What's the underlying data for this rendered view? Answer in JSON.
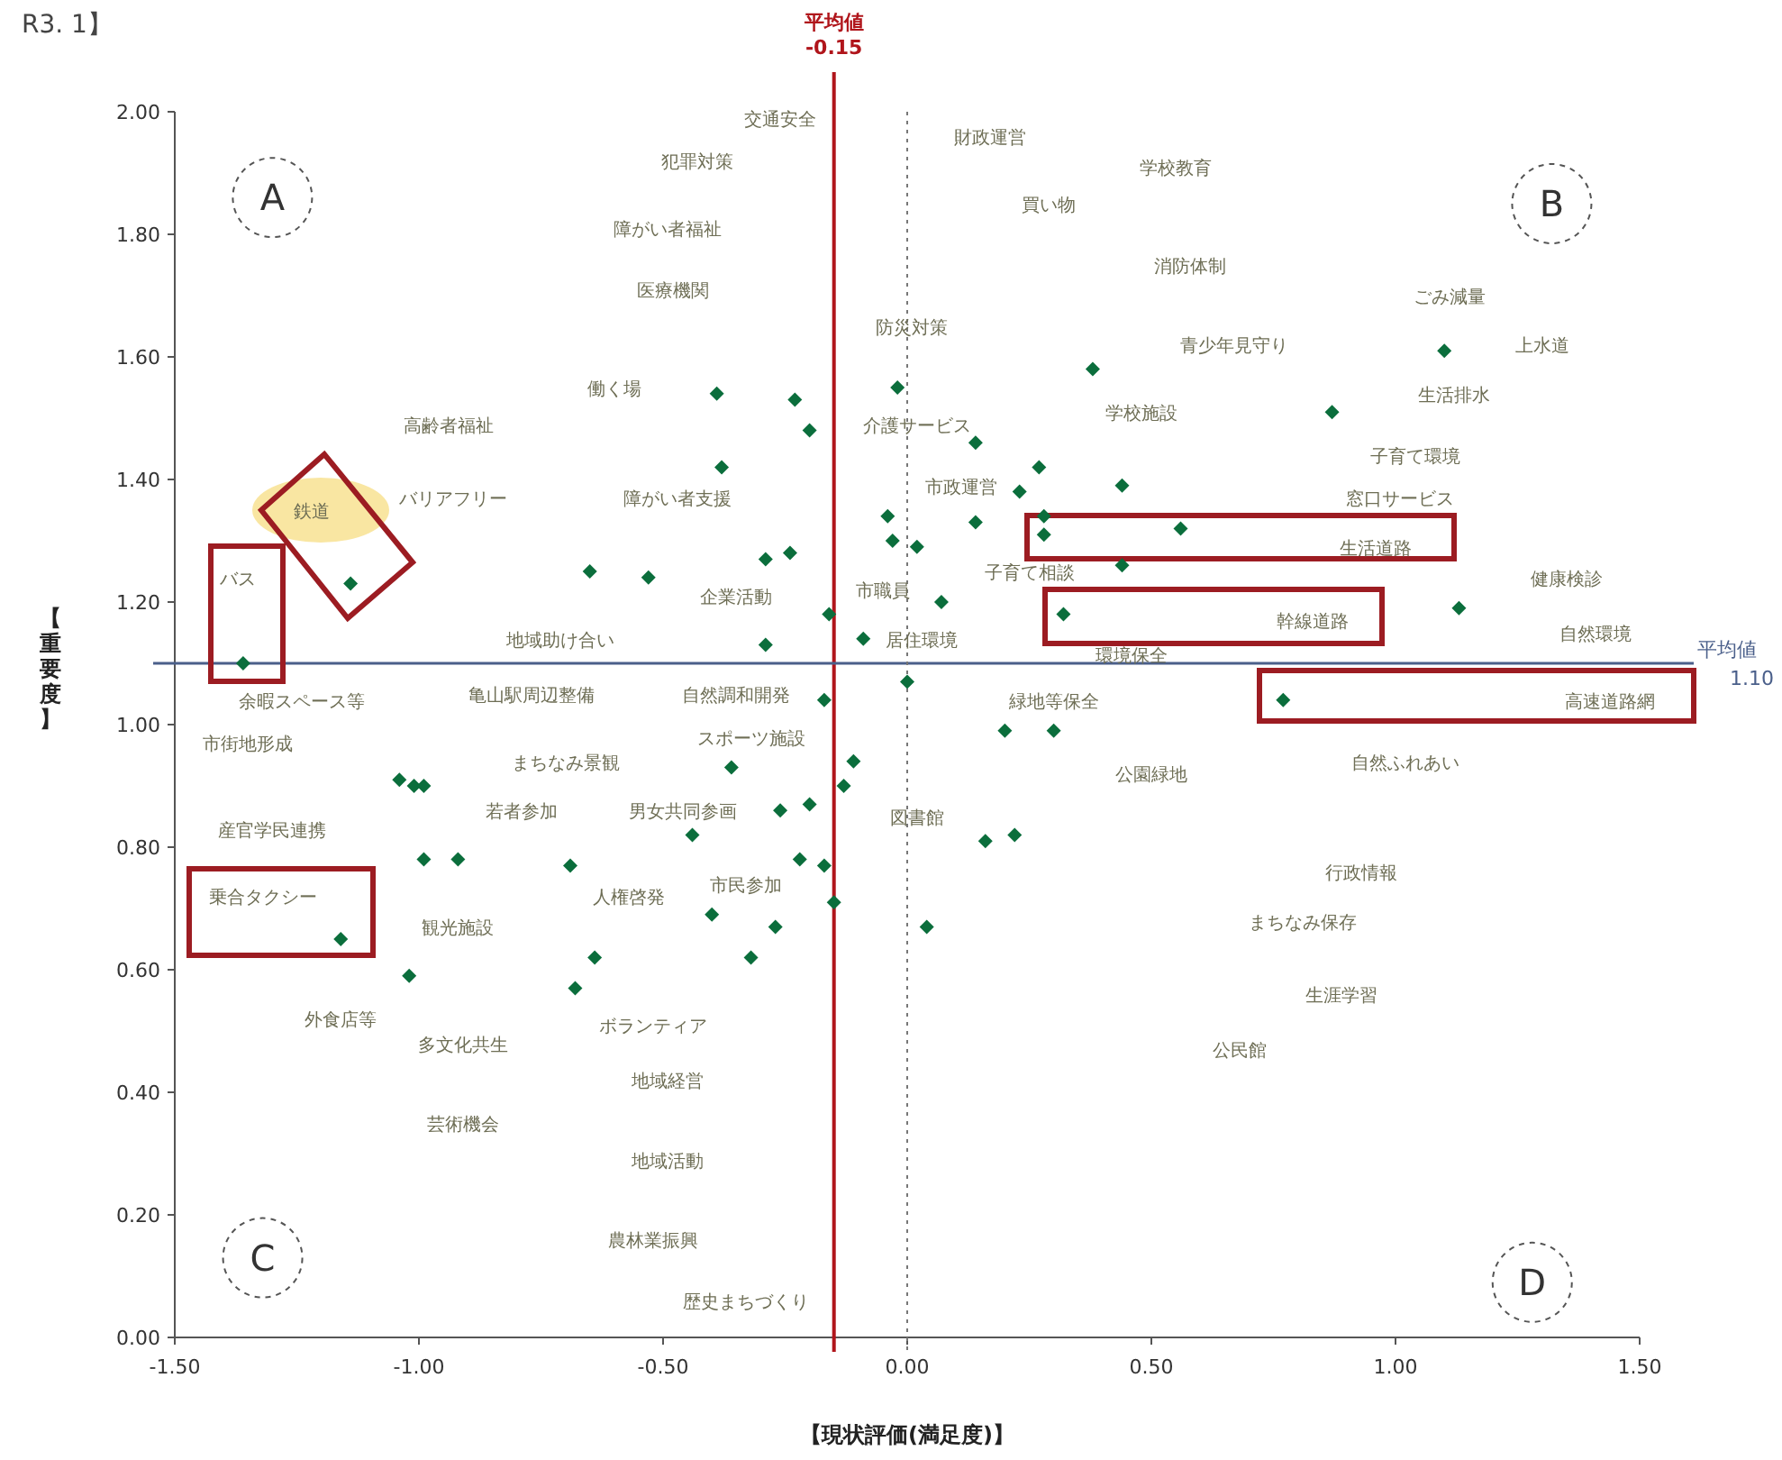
{
  "chart_data": {
    "type": "scatter",
    "xlabel": "【現状評価(満足度)】",
    "ylabel": "【重要度】",
    "xlim": [
      -1.5,
      1.5
    ],
    "ylim": [
      0,
      2
    ],
    "xticks": [
      {
        "value": -1.5,
        "label": "-1.50"
      },
      {
        "value": -1,
        "label": "-1.00"
      },
      {
        "value": -0.5,
        "label": "-0.50"
      },
      {
        "value": 0,
        "label": "0.00"
      },
      {
        "value": 0.5,
        "label": "0.50"
      },
      {
        "value": 1,
        "label": "1.00"
      },
      {
        "value": 1.5,
        "label": "1.50"
      }
    ],
    "yticks": [
      {
        "value": 0,
        "label": "0.00"
      },
      {
        "value": 0.2,
        "label": "0.20"
      },
      {
        "value": 0.4,
        "label": "0.40"
      },
      {
        "value": 0.6,
        "label": "0.60"
      },
      {
        "value": 0.8,
        "label": "0.80"
      },
      {
        "value": 1,
        "label": "1.00"
      },
      {
        "value": 1.2,
        "label": "1.20"
      },
      {
        "value": 1.4,
        "label": "1.40"
      },
      {
        "value": 1.6,
        "label": "1.60"
      },
      {
        "value": 1.8,
        "label": "1.80"
      },
      {
        "value": 2,
        "label": "2.00"
      }
    ],
    "grid": false,
    "marker": "diamond",
    "series": [
      {
        "color": "#0b6e3c",
        "x": [
          -0.39,
          -0.23,
          -0.2,
          -0.38,
          -0.29,
          -0.24,
          -0.65,
          -0.53,
          -1.14,
          -0.16,
          -0.29,
          -1.36,
          -0.02,
          0.38,
          1.1,
          0.87,
          0.14,
          0.27,
          0.23,
          0.44,
          -0.04,
          0.14,
          0.28,
          0.28,
          0.56,
          -0.03,
          0.02,
          0.44,
          1.13,
          0.07,
          0.32,
          -0.09,
          0,
          -0.17,
          -1.04,
          -1.01,
          -0.99,
          -0.36,
          -0.11,
          -0.13,
          -0.26,
          -0.2,
          -0.44,
          -0.99,
          -0.92,
          -0.69,
          -0.22,
          -0.17,
          -0.15,
          -0.4,
          -0.27,
          -1.16,
          -0.64,
          -0.32,
          -1.02,
          -0.68,
          0.77,
          0.2,
          0.3,
          0.16,
          0.22,
          0.04
        ],
        "values": [
          1.54,
          1.53,
          1.48,
          1.42,
          1.27,
          1.28,
          1.25,
          1.24,
          1.23,
          1.18,
          1.13,
          1.1,
          1.55,
          1.58,
          1.61,
          1.51,
          1.46,
          1.42,
          1.38,
          1.39,
          1.34,
          1.33,
          1.34,
          1.31,
          1.32,
          1.3,
          1.29,
          1.26,
          1.19,
          1.2,
          1.18,
          1.14,
          1.07,
          1.04,
          0.91,
          0.9,
          0.9,
          0.93,
          0.94,
          0.9,
          0.86,
          0.87,
          0.82,
          0.78,
          0.78,
          0.77,
          0.78,
          0.77,
          0.71,
          0.69,
          0.67,
          0.65,
          0.62,
          0.62,
          0.59,
          0.57,
          1.04,
          0.99,
          0.99,
          0.81,
          0.82,
          0.67
        ]
      }
    ],
    "ref_lines": [
      {
        "axis": "x",
        "value": -0.15,
        "label": "平均値\n-0.15",
        "color": "#b0151b",
        "line_style": "solid"
      },
      {
        "axis": "y",
        "value": 1.1,
        "label": "平均値\n1.10",
        "color": "#4a5f8a",
        "line_style": "solid"
      },
      {
        "axis": "x",
        "value": 0,
        "label": null,
        "color": "#777777",
        "line_style": "dotted"
      }
    ],
    "annotations": [
      "R3. 1】",
      "A",
      "B",
      "C",
      "D",
      "交通安全",
      "犯罪対策",
      "障がい者福祉",
      "医療機関",
      "働く場",
      "高齢者福祉",
      "バリアフリー",
      "鉄道",
      "障がい者支援",
      "バス",
      "企業活動",
      "地域助け合い",
      "財政運営",
      "学校教育",
      "買い物",
      "消防体制",
      "ごみ減量",
      "防災対策",
      "青少年見守り",
      "上水道",
      "生活排水",
      "学校施設",
      "介護サービス",
      "子育て環境",
      "市政運営",
      "窓口サービス",
      "生活道路",
      "子育て相談",
      "健康検診",
      "市職員",
      "幹線道路",
      "自然環境",
      "居住環境",
      "環境保全",
      "余暇スペース等",
      "亀山駅周辺整備",
      "自然調和開発",
      "市街地形成",
      "スポーツ施設",
      "まちなみ景観",
      "若者参加",
      "男女共同参画",
      "産官学民連携",
      "乗合タクシー",
      "人権啓発",
      "市民参加",
      "観光施設",
      "外食店等",
      "多文化共生",
      "ボランティア",
      "地域経営",
      "芸術機会",
      "地域活動",
      "農林業振興",
      "歴史まちづくり",
      "図書館",
      "緑地等保全",
      "高速道路網",
      "自然ふれあい",
      "公園緑地",
      "行政情報",
      "まちなみ保存",
      "生涯学習",
      "公民館"
    ]
  }
}
